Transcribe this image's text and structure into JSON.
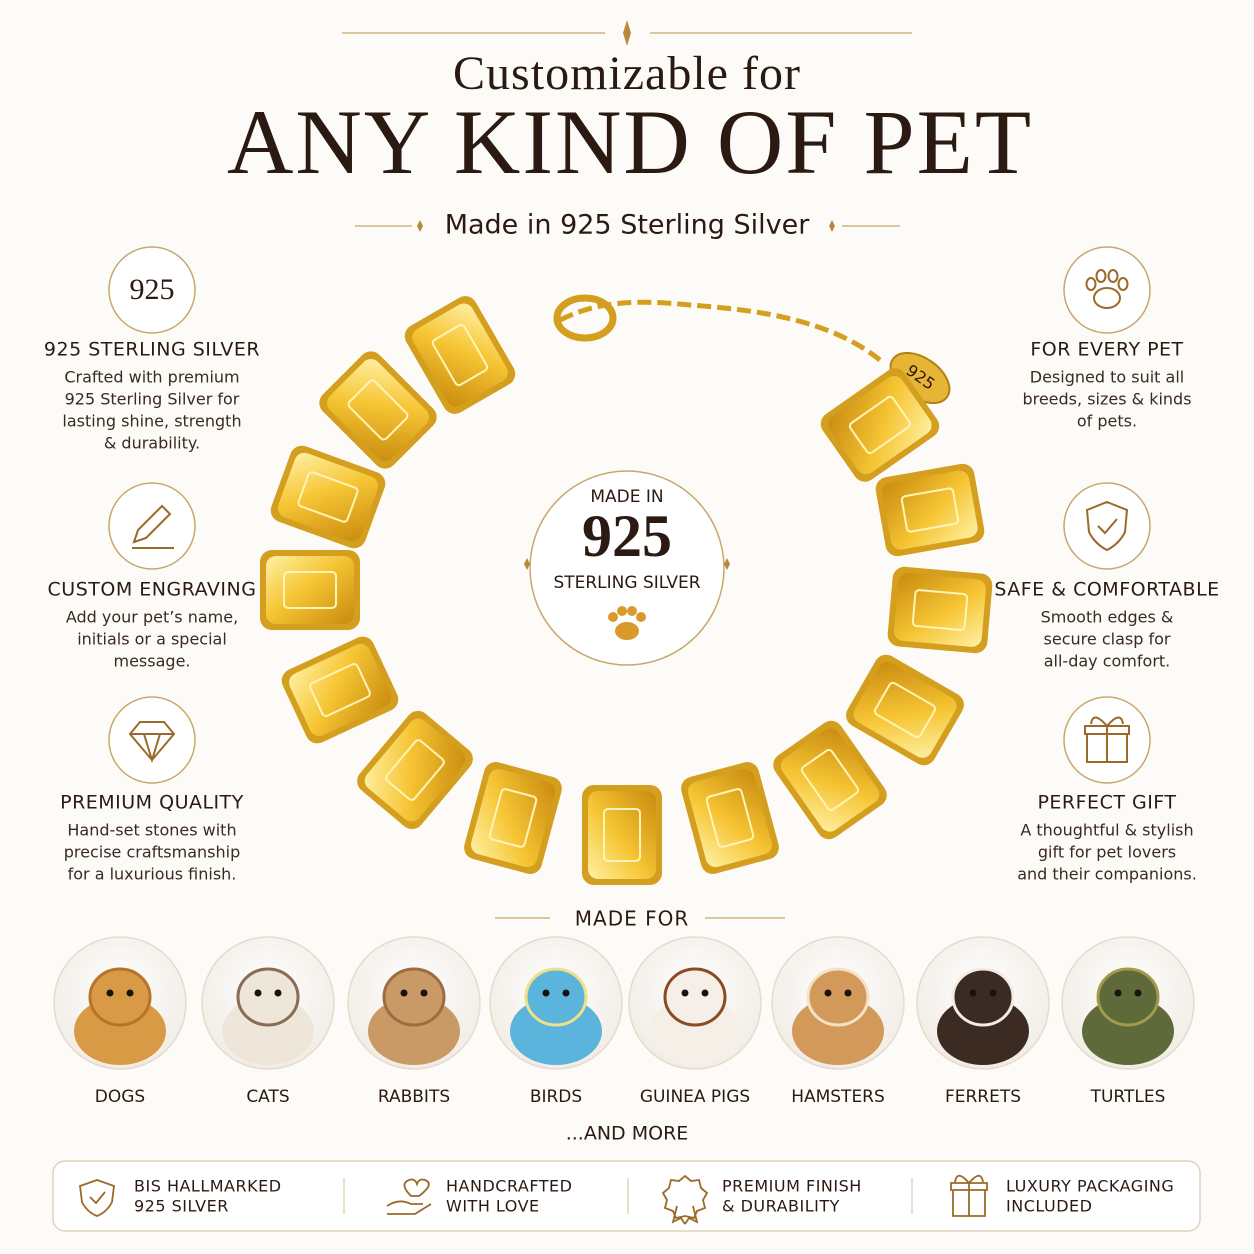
{
  "header": {
    "subtitle": "Customizable for",
    "title": "ANY KIND OF PET",
    "tagline": "Made in 925 Sterling Silver"
  },
  "features_left": [
    {
      "icon_text": "925",
      "title": "925 STERLING SILVER",
      "lines": [
        "Crafted with premium",
        "925 Sterling Silver for",
        "lasting shine, strength",
        "& durability."
      ]
    },
    {
      "title": "CUSTOM ENGRAVING",
      "lines": [
        "Add your pet’s name,",
        "initials or a special",
        "message."
      ]
    },
    {
      "title": "PREMIUM QUALITY",
      "lines": [
        "Hand-set stones with",
        "precise craftsmanship",
        "for a luxurious finish."
      ]
    }
  ],
  "features_right": [
    {
      "title": "FOR EVERY PET",
      "lines": [
        "Designed to suit all",
        "breeds, sizes & kinds",
        "of pets."
      ]
    },
    {
      "title": "SAFE & COMFORTABLE",
      "lines": [
        "Smooth edges &",
        "secure clasp for",
        "all-day comfort."
      ]
    },
    {
      "title": "PERFECT GIFT",
      "lines": [
        "A thoughtful & stylish",
        "gift for pet lovers",
        "and their companions."
      ]
    }
  ],
  "bracelet_tag": "925",
  "center_badge": {
    "top": "MADE IN",
    "number": "925",
    "bottom": "STERLING SILVER"
  },
  "made_for": {
    "title": "MADE FOR",
    "pets": [
      "DOGS",
      "CATS",
      "RABBITS",
      "BIRDS",
      "GUINEA PIGS",
      "HAMSTERS",
      "FERRETS",
      "TURTLES"
    ],
    "more": "...AND MORE"
  },
  "footer": [
    {
      "lines": [
        "BIS HALLMARKED",
        "925 SILVER"
      ]
    },
    {
      "lines": [
        "HANDCRAFTED",
        "WITH LOVE"
      ]
    },
    {
      "lines": [
        "PREMIUM FINISH",
        "& DURABILITY"
      ]
    },
    {
      "lines": [
        "LUXURY PACKAGING",
        "INCLUDED"
      ]
    }
  ]
}
